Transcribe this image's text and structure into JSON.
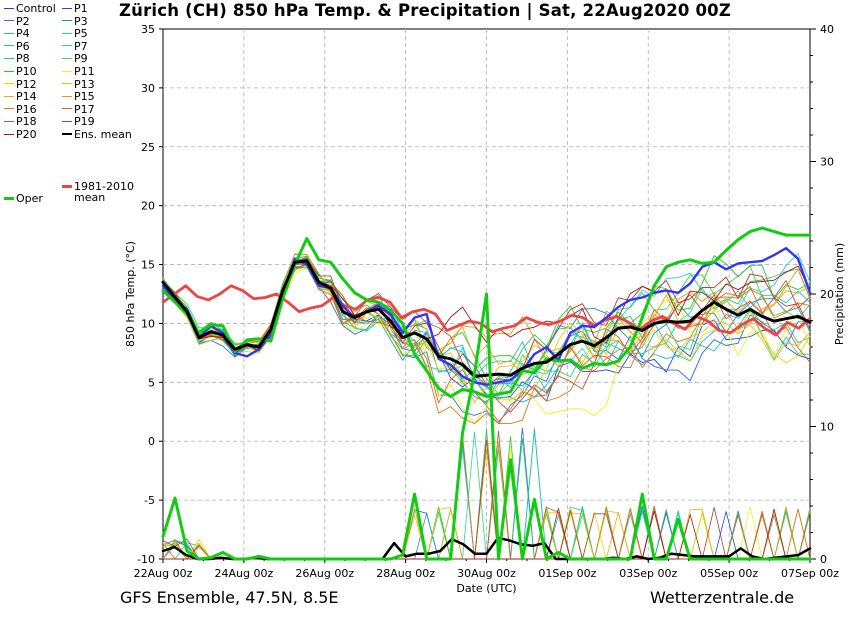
{
  "title": "Zürich  (CH)  850 hPa Temp. & Precipitation | Sat, 22Aug2020 00Z",
  "footer": {
    "model": "GFS Ensemble, 47.5N, 8.5E",
    "source": "Wetterzentrale.de"
  },
  "legend": [
    {
      "label": "Control",
      "color": "#3333ff"
    },
    {
      "label": "P1",
      "color": "#1e48e0"
    },
    {
      "label": "P2",
      "color": "#2a6fdb"
    },
    {
      "label": "P3",
      "color": "#1e90c8"
    },
    {
      "label": "P4",
      "color": "#1fb6e8"
    },
    {
      "label": "P5",
      "color": "#25d0d8"
    },
    {
      "label": "P6",
      "color": "#22c3a0"
    },
    {
      "label": "P7",
      "color": "#28d890"
    },
    {
      "label": "P8",
      "color": "#2ec46c"
    },
    {
      "label": "P9",
      "color": "#3ad84a"
    },
    {
      "label": "P10",
      "color": "#22cc22"
    },
    {
      "label": "P11",
      "color": "#f0f020"
    },
    {
      "label": "P12",
      "color": "#e8d400"
    },
    {
      "label": "P13",
      "color": "#e6c020"
    },
    {
      "label": "P14",
      "color": "#e0b010"
    },
    {
      "label": "P15",
      "color": "#e89c10"
    },
    {
      "label": "P16",
      "color": "#e07a10"
    },
    {
      "label": "P17",
      "color": "#e06020"
    },
    {
      "label": "P18",
      "color": "#c85030"
    },
    {
      "label": "P19",
      "color": "#b83c28"
    },
    {
      "label": "P20",
      "color": "#a01818"
    },
    {
      "label": "Ens. mean",
      "color": "#000000"
    },
    {
      "label": "1981-2010",
      "label2": "mean",
      "color": "#ee4444"
    },
    {
      "label": "Oper",
      "color": "#11cc11"
    }
  ],
  "chart_data": {
    "type": "line",
    "title": "Zürich  (CH)  850 hPa Temp. & Precipitation | Sat, 22Aug2020 00Z",
    "xlabel": "Date (UTC)",
    "ylabel": "850 hPa Temp. (°C)",
    "ylabel_right": "Precipitation (mm)",
    "x_unit": "hours since 22Aug 00z, 6-hourly steps",
    "x_range": [
      0,
      384
    ],
    "xticks": [
      {
        "v": 0,
        "label": "22Aug 00z"
      },
      {
        "v": 48,
        "label": "24Aug 00z"
      },
      {
        "v": 96,
        "label": "26Aug 00z"
      },
      {
        "v": 144,
        "label": "28Aug 00z"
      },
      {
        "v": 192,
        "label": "30Aug 00z"
      },
      {
        "v": 240,
        "label": "01Sep 00z"
      },
      {
        "v": 288,
        "label": "03Sep 00z"
      },
      {
        "v": 336,
        "label": "05Sep 00z"
      },
      {
        "v": 384,
        "label": "07Sep 00z"
      }
    ],
    "ylim": [
      -10,
      35
    ],
    "yticks": [
      -10,
      -5,
      0,
      5,
      10,
      15,
      20,
      25,
      30,
      35
    ],
    "ylim_right": [
      0,
      40
    ],
    "yticks_right": [
      0,
      10,
      20,
      30,
      40
    ],
    "grid": true,
    "temp_series": [
      {
        "name": "Ens. mean",
        "color": "#000000",
        "values": [
          13.5,
          12.2,
          11,
          8.8,
          9.3,
          9,
          7.8,
          8.2,
          8,
          9.5,
          12.8,
          15.2,
          15.3,
          13.5,
          13,
          11,
          10.5,
          11,
          11.2,
          10.2,
          8.8,
          9.2,
          8.7,
          7.2,
          7.0,
          6.5,
          5.5,
          5.6,
          5.7,
          5.6,
          6.2,
          6.6,
          6.7,
          7.4,
          8.2,
          8.5,
          8.1,
          8.8,
          9.6,
          9.7,
          9.4,
          10,
          10.2,
          10.1,
          10.2,
          11.1,
          11.8,
          11.2,
          10.7,
          11.2,
          10.6,
          10.2,
          10.4,
          10.6,
          10.1
        ]
      },
      {
        "name": "1981-2010 mean",
        "color": "#ee4444",
        "values": [
          11.8,
          12.5,
          13.2,
          12.3,
          12,
          12.5,
          13.2,
          12.8,
          12.1,
          12.2,
          12.5,
          11.8,
          11,
          11.3,
          11.5,
          12.2,
          11.5,
          11.2,
          12,
          12.2,
          11.8,
          10.5,
          11,
          11.2,
          10.8,
          9.4,
          9.8,
          10.2,
          10,
          9.3,
          9.6,
          9.8,
          10.5,
          10.1,
          9.9,
          10.2,
          10.7,
          10.5,
          9.8,
          10.3,
          10.6,
          10.1,
          9.5,
          10.2,
          10.6,
          10,
          9.5,
          10.6,
          10.2,
          9.4,
          9.2,
          9.9,
          10.4,
          9.6,
          9.0,
          10.1,
          9.6,
          10.4
        ]
      },
      {
        "name": "Control",
        "color": "#3333ff",
        "values": [
          13.2,
          12,
          11.2,
          8.8,
          9.8,
          9.2,
          7.5,
          7.2,
          7.8,
          9,
          12.5,
          15.5,
          15,
          13.2,
          13,
          11.5,
          10.5,
          11,
          11.5,
          10.8,
          9.2,
          10.5,
          10.8,
          7,
          6.5,
          5.5,
          5,
          4.8,
          5,
          5.2,
          6,
          7.4,
          8,
          6.9,
          9.2,
          9.8,
          9.7,
          10.5,
          11.4,
          12,
          12.2,
          12.6,
          12.8,
          12.6,
          13.4,
          14.8,
          15.2,
          14.6,
          15.1,
          15.2,
          15.3,
          15.8,
          16.4,
          15.5,
          12.6
        ]
      },
      {
        "name": "Oper",
        "color": "#11cc11",
        "values": [
          12.8,
          11.8,
          10.8,
          9.2,
          9.9,
          9.8,
          7.6,
          8.6,
          8.7,
          8.5,
          12.1,
          15,
          17.2,
          15.4,
          15.2,
          13.8,
          12.6,
          12,
          11.8,
          11.1,
          10,
          7.4,
          6,
          4.5,
          3.8,
          4.4,
          4.2,
          3.8,
          4,
          4.2,
          6,
          5.8,
          7,
          6.8,
          6.9,
          6.2,
          6.6,
          6.5,
          6.8,
          8,
          10.5,
          13.2,
          14.8,
          15.2,
          15.4,
          15.1,
          15.2,
          16.2,
          17.1,
          17.8,
          18.1,
          17.8,
          17.5,
          17.5,
          17.5
        ]
      }
    ],
    "precip_series": [
      {
        "name": "Ens. mean",
        "color": "#000000",
        "values": [
          0.6,
          0.9,
          0.3,
          0,
          0,
          0.1,
          0,
          0,
          0.1,
          0,
          0,
          0,
          0,
          0,
          0,
          0,
          0,
          0,
          0,
          0,
          1.2,
          0.2,
          0.4,
          0.4,
          0.6,
          1.5,
          1.1,
          0.4,
          0.4,
          1.6,
          1.4,
          1.1,
          1.0,
          1.2,
          0,
          0,
          0,
          0,
          0,
          0.1,
          0,
          0.2,
          0,
          0.1,
          0.4,
          0.3,
          0.2,
          0.2,
          0.2,
          0.2,
          0.8,
          0.2,
          0,
          0.1,
          0.2,
          0.3,
          0.8
        ]
      },
      {
        "name": "Oper",
        "color": "#11cc11",
        "values": [
          1.7,
          4.6,
          0.6,
          0,
          0.1,
          0.5,
          0,
          0,
          0.2,
          0,
          0,
          0,
          0,
          0,
          0,
          0,
          0,
          0,
          0,
          0,
          0.3,
          4.9,
          0,
          0,
          0,
          9.5,
          14,
          20,
          0,
          7.5,
          0,
          4.5,
          0,
          0.5,
          0,
          0,
          0,
          0,
          0,
          0,
          4.9,
          0,
          0,
          3,
          0,
          0,
          0,
          0,
          0,
          0,
          0,
          0,
          0,
          0,
          0
        ]
      }
    ],
    "member_spread": "20 perturbed members P1–P20 drawn as thin coloured lines between ensemble extremes"
  }
}
